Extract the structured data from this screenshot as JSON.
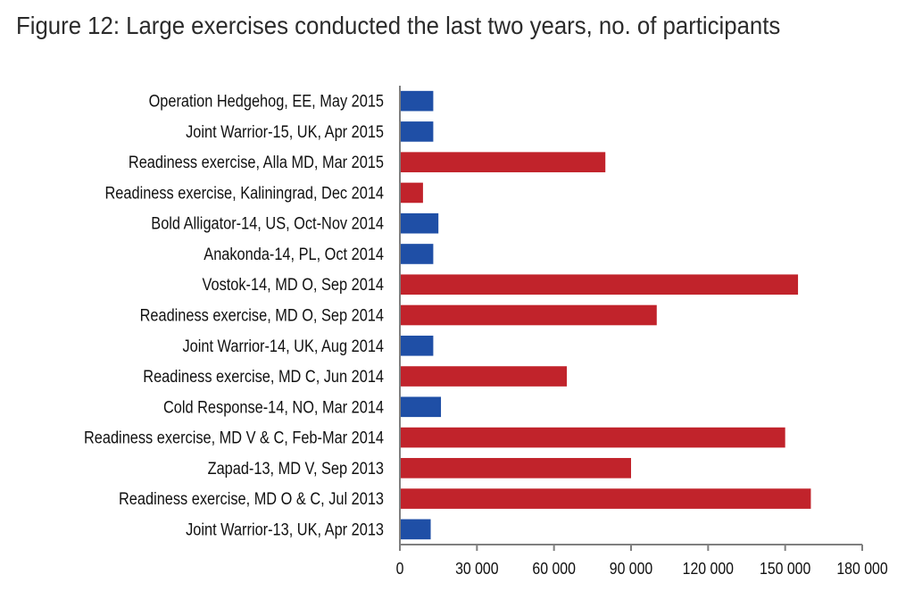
{
  "title": "Figure 12: Large exercises conducted the last two years, no. of participants",
  "colors": {
    "nato": "#1f4fa6",
    "russia": "#c1232b",
    "axis": "#7f7f7f"
  },
  "chart_data": {
    "type": "bar",
    "orientation": "horizontal",
    "title": "Figure 12: Large exercises conducted the last two years, no. of participants",
    "xlabel": "",
    "ylabel": "",
    "xlim": [
      0,
      180000
    ],
    "grid": false,
    "xticks": [
      0,
      30000,
      60000,
      90000,
      120000,
      150000,
      180000
    ],
    "xtick_labels": [
      "0",
      "30 000",
      "60 000",
      "90 000",
      "120 000",
      "150 000",
      "180 000"
    ],
    "categories": [
      "Operation Hedgehog,  EE, May 2015",
      "Joint Warrior-15,  UK, Apr 2015",
      "Readiness exercise, Alla MD, Mar 2015",
      "Readiness exercise, Kaliningrad, Dec 2014",
      "Bold Alligator-14, US, Oct-Nov 2014",
      "Anakonda-14,  PL,  Oct 2014",
      "Vostok-14,  MD  O, Sep 2014",
      "Readiness exercise, MD O, Sep 2014",
      "Joint Warrior-14,  UK, Aug 2014",
      "Readiness exercise, MD C, Jun 2014",
      "Cold Response-14, NO,  Mar 2014",
      "Readiness exercise, MD V & C, Feb-Mar 2014",
      "Zapad-13,  MD V,  Sep 2013",
      "Readiness exercise, MD O & C, Jul 2013",
      "Joint Warrior-13,  UK, Apr 2013"
    ],
    "values": [
      13000,
      13000,
      80000,
      9000,
      15000,
      13000,
      155000,
      100000,
      13000,
      65000,
      16000,
      150000,
      90000,
      160000,
      12000
    ],
    "bar_colors": [
      "nato",
      "nato",
      "russia",
      "russia",
      "nato",
      "nato",
      "russia",
      "russia",
      "nato",
      "russia",
      "nato",
      "russia",
      "russia",
      "russia",
      "nato"
    ]
  }
}
